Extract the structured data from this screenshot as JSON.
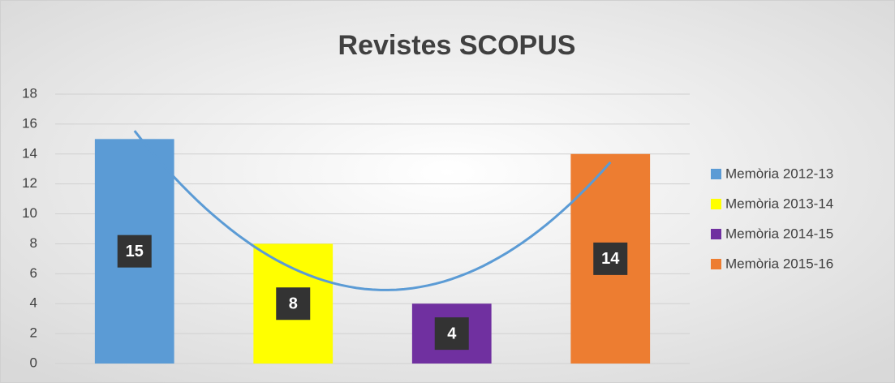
{
  "chart_data": {
    "type": "bar",
    "title": "Revistes SCOPUS",
    "categories": [
      null
    ],
    "series": [
      {
        "name": "Memòria 2012-13",
        "color": "#5b9bd5",
        "values": [
          15
        ]
      },
      {
        "name": "Memòria 2013-14",
        "color": "#ffff00",
        "values": [
          8
        ]
      },
      {
        "name": "Memòria 2014-15",
        "color": "#7030a0",
        "values": [
          4
        ]
      },
      {
        "name": "Memòria 2015-16",
        "color": "#ed7d31",
        "values": [
          14
        ]
      }
    ],
    "ylim": [
      0,
      18
    ],
    "yticks": [
      0,
      2,
      4,
      6,
      8,
      10,
      12,
      14,
      16,
      18
    ],
    "grid": true,
    "legend": "right",
    "trendline": {
      "type": "polynomial",
      "order": 2,
      "color": "#5b9bd5"
    }
  }
}
